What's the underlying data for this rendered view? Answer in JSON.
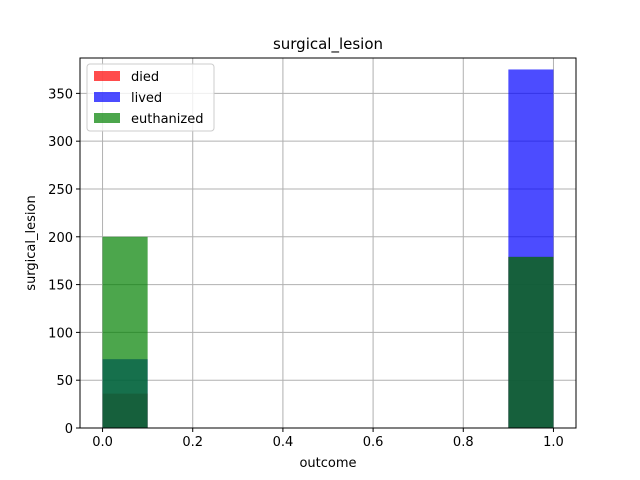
{
  "chart_data": {
    "type": "bar",
    "title": "surgical_lesion",
    "xlabel": "outcome",
    "ylabel": "surgical_lesion",
    "xlim": [
      -0.05,
      1.05
    ],
    "ylim": [
      0,
      387
    ],
    "xticks": [
      0.0,
      0.2,
      0.4,
      0.6,
      0.8,
      1.0
    ],
    "xtick_labels": [
      "0.0",
      "0.2",
      "0.4",
      "0.6",
      "0.8",
      "1.0"
    ],
    "yticks": [
      0,
      50,
      100,
      150,
      200,
      250,
      300,
      350
    ],
    "ytick_labels": [
      "0",
      "50",
      "100",
      "150",
      "200",
      "250",
      "300",
      "350"
    ],
    "grid": true,
    "legend_position": "top-left",
    "series": [
      {
        "name": "died",
        "color": "#ff0000",
        "alpha": 0.7,
        "bins": [
          {
            "x0": 0.0,
            "x1": 0.1,
            "value": 36
          },
          {
            "x0": 0.9,
            "x1": 1.0,
            "value": 179
          }
        ]
      },
      {
        "name": "lived",
        "color": "#0000ff",
        "alpha": 0.7,
        "bins": [
          {
            "x0": 0.0,
            "x1": 0.1,
            "value": 72
          },
          {
            "x0": 0.9,
            "x1": 1.0,
            "value": 375
          }
        ]
      },
      {
        "name": "euthanized",
        "color": "#008000",
        "alpha": 0.7,
        "bins": [
          {
            "x0": 0.0,
            "x1": 0.1,
            "value": 200
          },
          {
            "x0": 0.9,
            "x1": 1.0,
            "value": 179
          }
        ]
      }
    ]
  }
}
